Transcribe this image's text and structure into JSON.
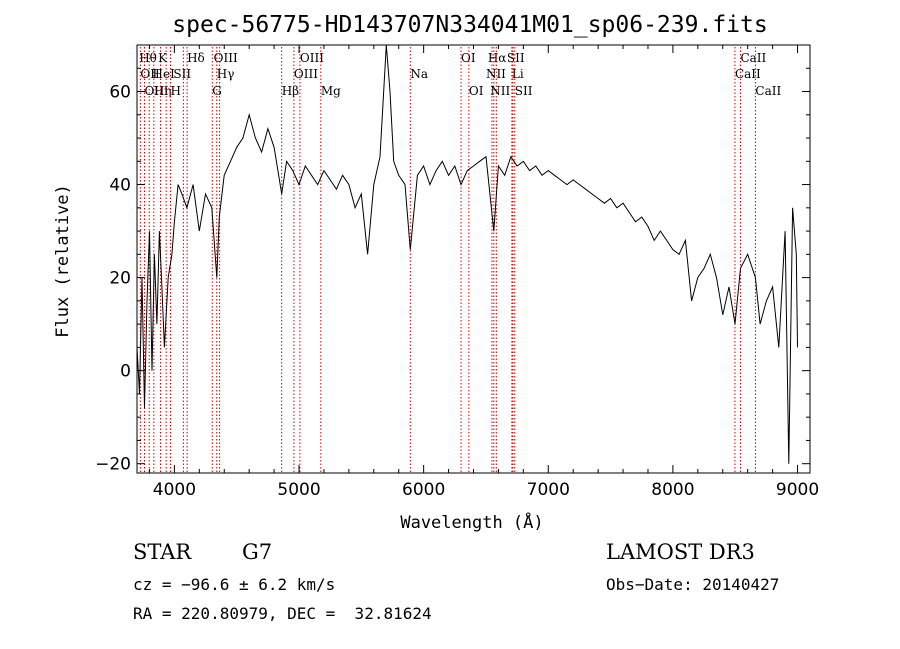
{
  "chart_data": {
    "type": "line",
    "title": "spec-56775-HD143707N334041M01_sp06-239.fits",
    "xlabel": "Wavelength (Å)",
    "ylabel": "Flux (relative)",
    "xlim": [
      3700,
      9100
    ],
    "ylim": [
      -22,
      70
    ],
    "x_ticks": [
      4000,
      5000,
      6000,
      7000,
      8000,
      9000
    ],
    "y_ticks": [
      -20,
      0,
      20,
      40,
      60
    ],
    "series": [
      {
        "color": "#000000",
        "x": [
          3700,
          3720,
          3740,
          3760,
          3780,
          3800,
          3820,
          3840,
          3860,
          3880,
          3900,
          3920,
          3950,
          3980,
          4000,
          4030,
          4060,
          4100,
          4150,
          4200,
          4250,
          4300,
          4340,
          4360,
          4400,
          4450,
          4500,
          4550,
          4600,
          4650,
          4700,
          4750,
          4800,
          4861,
          4900,
          4950,
          5000,
          5050,
          5100,
          5150,
          5200,
          5250,
          5300,
          5350,
          5400,
          5450,
          5500,
          5550,
          5600,
          5650,
          5700,
          5730,
          5760,
          5800,
          5850,
          5893,
          5950,
          6000,
          6050,
          6100,
          6150,
          6200,
          6250,
          6300,
          6350,
          6400,
          6450,
          6500,
          6563,
          6600,
          6650,
          6700,
          6750,
          6800,
          6850,
          6900,
          6950,
          7000,
          7050,
          7100,
          7150,
          7200,
          7250,
          7300,
          7350,
          7400,
          7450,
          7500,
          7550,
          7600,
          7650,
          7700,
          7750,
          7800,
          7850,
          7900,
          7950,
          8000,
          8050,
          8100,
          8150,
          8200,
          8250,
          8300,
          8350,
          8400,
          8450,
          8498,
          8542,
          8600,
          8662,
          8700,
          8750,
          8800,
          8850,
          8900,
          8930,
          8960,
          8990,
          9000
        ],
        "values": [
          5,
          -5,
          20,
          -8,
          15,
          30,
          0,
          25,
          10,
          30,
          18,
          5,
          20,
          25,
          32,
          40,
          38,
          35,
          40,
          30,
          38,
          35,
          20,
          33,
          42,
          45,
          48,
          50,
          55,
          50,
          47,
          52,
          48,
          38,
          45,
          43,
          40,
          44,
          42,
          40,
          43,
          41,
          39,
          42,
          40,
          35,
          38,
          25,
          40,
          46,
          70,
          60,
          45,
          42,
          40,
          26,
          42,
          44,
          40,
          43,
          45,
          42,
          44,
          40,
          43,
          44,
          45,
          46,
          30,
          44,
          42,
          46,
          44,
          45,
          43,
          44,
          42,
          43,
          42,
          41,
          40,
          41,
          40,
          39,
          38,
          37,
          36,
          37,
          35,
          36,
          34,
          32,
          33,
          31,
          28,
          30,
          28,
          26,
          25,
          28,
          15,
          20,
          22,
          25,
          20,
          12,
          18,
          10,
          22,
          25,
          20,
          10,
          15,
          18,
          5,
          30,
          -20,
          35,
          25,
          5
        ]
      }
    ],
    "spectral_lines": [
      {
        "label": "Hθ",
        "x": 3798,
        "row": 1,
        "offset": -10
      },
      {
        "label": "OII",
        "x": 3727,
        "row": 2,
        "offset": 0
      },
      {
        "label": "OIII",
        "x": 3760,
        "row": 3,
        "offset": 0
      },
      {
        "label": "Hη",
        "x": 3835,
        "row": 3,
        "offset": 0
      },
      {
        "label": "HeI",
        "x": 3889,
        "row": 2,
        "offset": -8
      },
      {
        "label": "K",
        "x": 3934,
        "row": 1,
        "offset": -8
      },
      {
        "label": "H",
        "x": 3969,
        "row": 3,
        "offset": 0
      },
      {
        "label": "SII",
        "x": 4072,
        "row": 2,
        "offset": -10
      },
      {
        "label": "Hδ",
        "x": 4102,
        "row": 1,
        "offset": 0
      },
      {
        "label": "OIII",
        "x": 4363,
        "row": 1,
        "offset": -6
      },
      {
        "label": "Hγ",
        "x": 4340,
        "row": 2,
        "offset": 0
      },
      {
        "label": "G",
        "x": 4304,
        "row": 3,
        "offset": 0
      },
      {
        "label": "Hβ",
        "x": 4861,
        "row": 3,
        "offset": 0
      },
      {
        "label": "OIII",
        "x": 5007,
        "row": 1,
        "offset": 0
      },
      {
        "label": "OIII",
        "x": 4959,
        "row": 2,
        "offset": 0
      },
      {
        "label": "Mg",
        "x": 5175,
        "row": 3,
        "offset": 0
      },
      {
        "label": "Na",
        "x": 5893,
        "row": 2,
        "offset": 0
      },
      {
        "label": "OI",
        "x": 6300,
        "row": 1,
        "offset": 0
      },
      {
        "label": "OI",
        "x": 6363,
        "row": 3,
        "offset": 0
      },
      {
        "label": "Hα",
        "x": 6563,
        "row": 1,
        "offset": -6
      },
      {
        "label": "NII",
        "x": 6548,
        "row": 2,
        "offset": -6
      },
      {
        "label": "NII",
        "x": 6583,
        "row": 3,
        "offset": -6
      },
      {
        "label": "SII",
        "x": 6716,
        "row": 1,
        "offset": -6
      },
      {
        "label": "Li",
        "x": 6708,
        "row": 2,
        "offset": 0
      },
      {
        "label": "SII",
        "x": 6731,
        "row": 3,
        "offset": 0
      },
      {
        "label": "CaII",
        "x": 8542,
        "row": 1,
        "offset": 0
      },
      {
        "label": "CaII",
        "x": 8498,
        "row": 2,
        "offset": 0
      },
      {
        "label": "CaII",
        "x": 8662,
        "row": 3,
        "offset": 0
      }
    ]
  },
  "footer": {
    "class_label": "STAR",
    "subclass_label": "G7",
    "survey_label": "LAMOST DR3",
    "cz_text": "cz = −96.6 ± 6.2 km/s",
    "obs_date_text": "Obs−Date: 20140427",
    "radec_text": "RA = 220.80979, DEC =  32.81624"
  }
}
